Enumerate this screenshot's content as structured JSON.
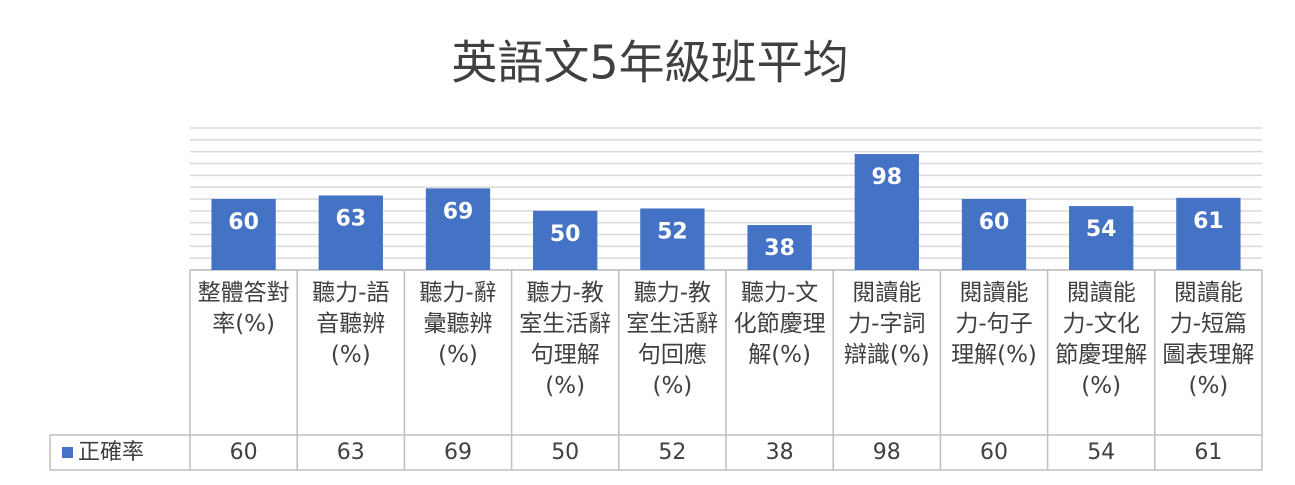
{
  "chart_data": {
    "type": "bar",
    "title": "英語文5年級班平均",
    "categories": [
      "整體答對率(%)",
      "聽力-語音聽辨(%)",
      "聽力-辭彙聽辨(%)",
      "聽力-教室生活辭句理解(%)",
      "聽力-教室生活辭句回應(%)",
      "聽力-文化節慶理解(%)",
      "閱讀能力-字詞辯識(%)",
      "閱讀能力-句子理解(%)",
      "閱讀能力-文化節慶理解(%)",
      "閱讀能力-短篇圖表理解(%)"
    ],
    "series": [
      {
        "name": "正確率",
        "color": "#4472c4",
        "values": [
          60,
          63,
          69,
          50,
          52,
          38,
          98,
          60,
          54,
          61
        ]
      }
    ],
    "ylim": [
      0,
      120
    ],
    "yticks": [
      0,
      10,
      20,
      30,
      40,
      50,
      60,
      70,
      80,
      90,
      100,
      110,
      120
    ],
    "grid": true
  }
}
